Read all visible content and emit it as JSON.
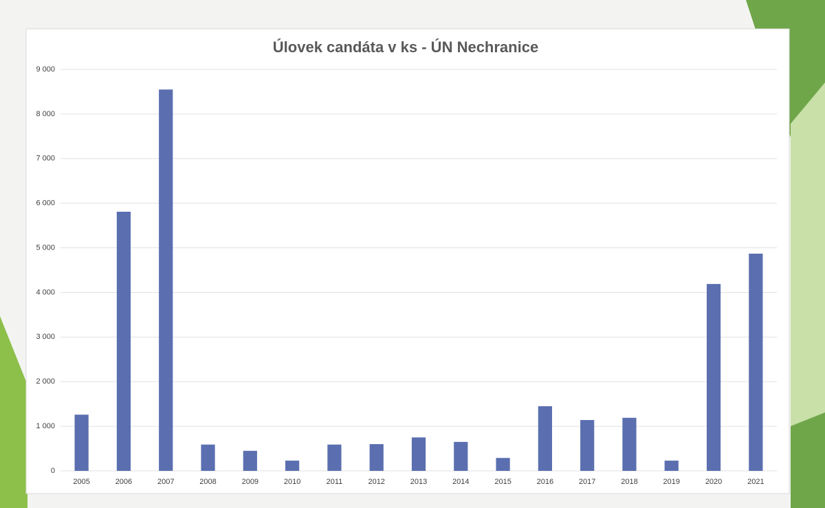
{
  "chart_data": {
    "type": "bar",
    "title": "Úlovek candáta v ks - ÚN Nechranice",
    "categories": [
      "2005",
      "2006",
      "2007",
      "2008",
      "2009",
      "2010",
      "2011",
      "2012",
      "2013",
      "2014",
      "2015",
      "2016",
      "2017",
      "2018",
      "2019",
      "2020",
      "2021"
    ],
    "values": [
      1260,
      5810,
      8550,
      590,
      450,
      230,
      590,
      600,
      750,
      650,
      290,
      1450,
      1140,
      1190,
      230,
      4190,
      4870
    ],
    "color": "#5b6fb0",
    "ylim": [
      0,
      9000
    ],
    "yticks": [
      0,
      {
        "value": 1000,
        "label": "1 000"
      },
      {
        "value": 2000,
        "label": "2 000"
      },
      {
        "value": 3000,
        "label": "3 000"
      },
      {
        "value": 4000,
        "label": "4 000"
      },
      {
        "value": 5000,
        "label": "5 000"
      },
      {
        "value": 6000,
        "label": "6 000"
      },
      {
        "value": 7000,
        "label": "7 000"
      },
      {
        "value": 8000,
        "label": "8 000"
      },
      {
        "value": 9000,
        "label": "9 000"
      }
    ],
    "grid": true
  }
}
